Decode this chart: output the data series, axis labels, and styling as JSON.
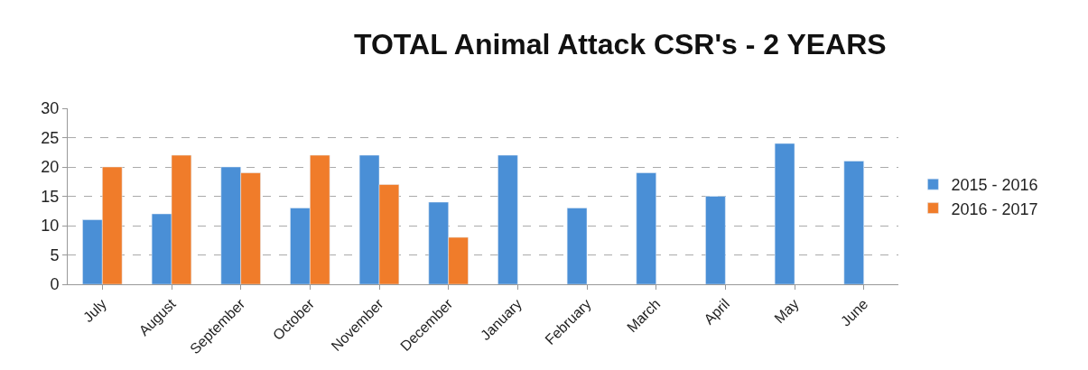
{
  "chart_data": {
    "type": "bar",
    "title": "TOTAL Animal Attack CSR's - 2 YEARS",
    "categories": [
      "July",
      "August",
      "September",
      "October",
      "November",
      "December",
      "January",
      "February",
      "March",
      "April",
      "May",
      "June"
    ],
    "series": [
      {
        "name": "2015 - 2016",
        "color": "#4a8fd6",
        "values": [
          11,
          12,
          20,
          13,
          22,
          14,
          22,
          13,
          19,
          15,
          24,
          21
        ]
      },
      {
        "name": "2016 - 2017",
        "color": "#f07c2a",
        "values": [
          20,
          22,
          19,
          22,
          17,
          8,
          null,
          null,
          null,
          null,
          null,
          null
        ]
      }
    ],
    "ylim": [
      0,
      30
    ],
    "yticks": [
      0,
      5,
      10,
      15,
      20,
      25,
      30
    ],
    "grid": "y",
    "legend": "right"
  }
}
